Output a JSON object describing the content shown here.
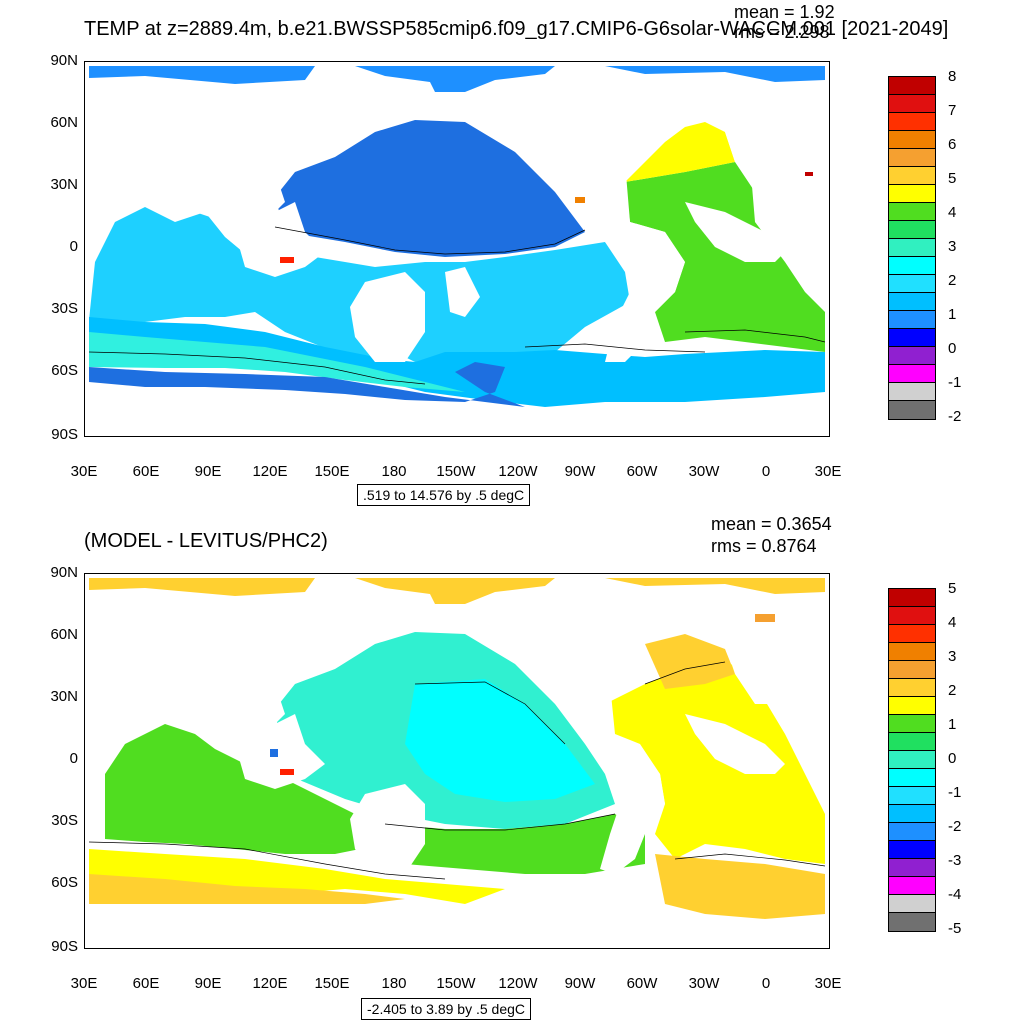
{
  "panels": [
    {
      "title": "TEMP at z=2889.4m, b.e21.BWSSP585cmip6.f09_g17.CMIP6-G6solar-WACCM.001 [2021-2049]",
      "mean": "mean = 1.92",
      "rms": "rms = 2.298",
      "range": ".519 to 14.576 by .5 degC",
      "lat_labels": [
        "90N",
        "60N",
        "30N",
        "0",
        "30S",
        "60S",
        "90S"
      ],
      "lon_labels": [
        "30E",
        "60E",
        "90E",
        "120E",
        "150E",
        "180",
        "150W",
        "120W",
        "90W",
        "60W",
        "30W",
        "0",
        "30E"
      ],
      "colorbar_labels": [
        "8",
        "7",
        "6",
        "5",
        "4",
        "3",
        "2",
        "1",
        "0",
        "-1",
        "-2"
      ],
      "colorbar_colors": [
        "#c00000",
        "#e01010",
        "#ff3000",
        "#f08000",
        "#f5a030",
        "#ffd030",
        "#ffff00",
        "#50dd20",
        "#20e060",
        "#30f0c0",
        "#00ffff",
        "#20e0ff",
        "#00bfff",
        "#1e90ff",
        "#0000ff",
        "#9020d0",
        "#ff00ff",
        "#d0d0d0",
        "#707070"
      ]
    },
    {
      "title": "(MODEL - LEVITUS/PHC2)",
      "mean": "mean = 0.3654",
      "rms": "rms = 0.8764",
      "range": "-2.405 to 3.89 by .5 degC",
      "lat_labels": [
        "90N",
        "60N",
        "30N",
        "0",
        "30S",
        "60S",
        "90S"
      ],
      "lon_labels": [
        "30E",
        "60E",
        "90E",
        "120E",
        "150E",
        "180",
        "150W",
        "120W",
        "90W",
        "60W",
        "30W",
        "0",
        "30E"
      ],
      "colorbar_labels": [
        "5",
        "4",
        "3",
        "2",
        "1",
        "0",
        "-1",
        "-2",
        "-3",
        "-4",
        "-5"
      ],
      "colorbar_colors": [
        "#c00000",
        "#e01010",
        "#ff3000",
        "#f08000",
        "#f5a030",
        "#ffd030",
        "#ffff00",
        "#50dd20",
        "#20e060",
        "#30f0c0",
        "#00ffff",
        "#20e0ff",
        "#00bfff",
        "#1e90ff",
        "#0000ff",
        "#9020d0",
        "#ff00ff",
        "#d0d0d0",
        "#707070"
      ]
    }
  ]
}
